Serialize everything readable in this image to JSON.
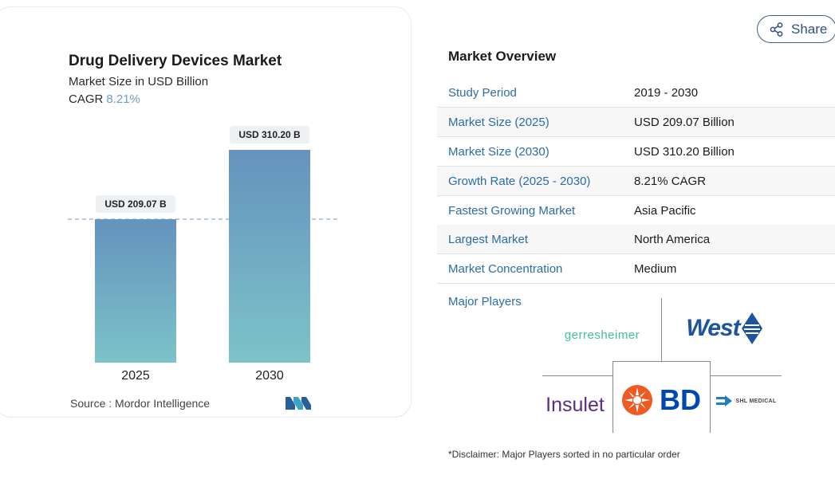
{
  "chart_data": {
    "type": "bar",
    "title": "Drug Delivery Devices Market",
    "subtitle": "Market Size in USD Billion",
    "cagr_label": "CAGR",
    "cagr_value": "8.21%",
    "categories": [
      "2025",
      "2030"
    ],
    "values": [
      209.07,
      310.2
    ],
    "data_labels": [
      "USD 209.07 B",
      "USD 310.20 B"
    ],
    "reference_line_value": 209.07,
    "bar_color_top": "#6593bd",
    "bar_color_bottom": "#7cc3c9",
    "grid": false,
    "source_label": "Source :",
    "source_value": "Mordor Intelligence"
  },
  "share": {
    "label": "Share"
  },
  "overview": {
    "title": "Market Overview",
    "rows": [
      {
        "key": "Study Period",
        "value": "2019 - 2030"
      },
      {
        "key": "Market Size (2025)",
        "value": "USD 209.07 Billion"
      },
      {
        "key": "Market Size (2030)",
        "value": "USD 310.20 Billion"
      },
      {
        "key": "Growth Rate (2025 - 2030)",
        "value": "8.21% CAGR"
      },
      {
        "key": "Fastest Growing Market",
        "value": "Asia Pacific"
      },
      {
        "key": "Largest Market",
        "value": "North America"
      },
      {
        "key": "Market Concentration",
        "value": "Medium"
      }
    ],
    "major_players_label": "Major Players"
  },
  "players": {
    "gerresheimer": "gerresheimer",
    "west": "West",
    "insulet": "Insulet",
    "bd": "BD",
    "shl": "SHL MEDICAL"
  },
  "disclaimer": "*Disclaimer: Major Players sorted in no particular order",
  "colors": {
    "accent": "#2b6da7",
    "cagr": "#6f9bbf",
    "bd_orange": "#f05a22",
    "bd_blue": "#0046b4",
    "west_blue": "#1d54a0"
  }
}
